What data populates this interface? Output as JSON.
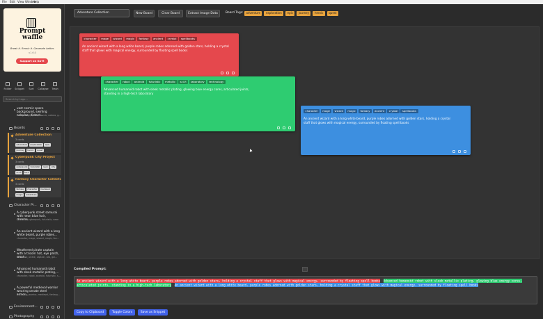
{
  "menu": [
    "File",
    "Edit",
    "View",
    "Window",
    "Help"
  ],
  "sidebar": {
    "logo": {
      "lines": [
        "Prompt",
        "waffle"
      ],
      "tagline": "Break it. Remix it. Generate better.",
      "version": "v1.6.0",
      "support": "Support on Ko-fi"
    },
    "toolbar": [
      "Folder",
      "Snippet",
      "Sort",
      "Collapse",
      "Trash"
    ],
    "search_placeholder": "Search by tags...",
    "loose_snippet": {
      "text": "vast cosmic space background, swirling nebulae, distant...",
      "tags": "background, space, cosmic, nebula, g..."
    },
    "boards_folder": {
      "name": "Boards",
      "boards": [
        {
          "name": "Adventure Collection",
          "count": "3 cards",
          "tags": [
            "adventure",
            "exploration",
            "epic",
            "journey",
            "heroic",
            "quest"
          ]
        },
        {
          "name": "Cyberpunk City Project",
          "count": "3 cards",
          "tags": [
            "cyberpunk",
            "futuristic",
            "neon",
            "city",
            "sci-fi",
            "tech"
          ]
        },
        {
          "name": "Fantasy Character Collecti...",
          "count": "3 cards",
          "tags": [
            "fantasy",
            "character",
            "medieval",
            "magic",
            "adventure"
          ]
        }
      ]
    },
    "character_folder": {
      "name": "Character Pr...",
      "snippets": [
        {
          "text": "A cyberpunk street samurai with neon blue hair, chrome...",
          "tags": "character, cyberpunk, futuristic, neon"
        },
        {
          "text": "An ancient wizard with a long white beard, purple robes...",
          "tags": "character, mage, wizard, magic, fan..."
        },
        {
          "text": "Weathered pirate captain with a tricorn hat, eye patch, smat...",
          "tags": "character, pirate, captain, sea, gal..."
        },
        {
          "text": "Advanced humanoid robot with sleek metallic plating,...",
          "tags": "character, robot, android, futuristic, s..."
        },
        {
          "text": "A powerful medieval warrior wearing ornate steel armor,...",
          "tags": "character, warrior, medieval, fantasy..."
        }
      ]
    },
    "other_folders": [
      "Environment...",
      "Photography"
    ]
  },
  "main": {
    "board_select": "Adventure Collection",
    "buttons": [
      "New Board",
      "Clear Board",
      "Extract Image Data"
    ],
    "board_tags_label": "Board Tags:",
    "board_tags": [
      "adventure",
      "exploration",
      "epic",
      "journey",
      "heroic",
      "quest"
    ],
    "cards": [
      {
        "color": "#e5484d",
        "tags": [
          "character",
          "mage",
          "wizard",
          "magic",
          "fantasy",
          "ancient",
          "crystal",
          "spellbooks"
        ],
        "text": "An ancient wizard with a long white beard, purple robes adorned with golden stars, holding a crystal staff that glows with magical energy, surrounded by floating spell books"
      },
      {
        "color": "#2ecc71",
        "tags": [
          "character",
          "robot",
          "android",
          "futuristic",
          "metallic",
          "sci-fi",
          "laboratory",
          "technology"
        ],
        "text": "Advanced humanoid robot with sleek metallic plating, glowing blue energy cores, articulated joints, standing in a high-tech laboratory"
      },
      {
        "color": "#3d8fe0",
        "tags": [
          "character",
          "mage",
          "wizard",
          "magic",
          "fantasy",
          "ancient",
          "crystal",
          "spellbooks"
        ],
        "text": "An ancient wizard with a long white beard, purple robes adorned with golden stars, holding a crystal staff that glows with magical energy, surrounded by floating spell books"
      }
    ],
    "compiled": {
      "label": "Compiled Prompt:",
      "segments": [
        {
          "color": "#e5484d",
          "text": "An ancient wizard with a long white beard, purple robes adorned with golden stars, holding a crystal staff that glows with magical energy, surrounded by floating spell books"
        },
        {
          "color": "#2ecc71",
          "text": "Advanced humanoid robot with sleek metallic plating, glowing blue energy cores, articulated joints, standing in a high-tech laboratory"
        },
        {
          "color": "#3d8fe0",
          "text": "An ancient wizard with a long white beard, purple robes adorned with golden stars, holding a crystal staff that glows with magical energy, surrounded by floating spell books"
        }
      ]
    },
    "actions": [
      "Copy to Clipboard",
      "Toggle Colors",
      "Save as Snippet"
    ]
  }
}
